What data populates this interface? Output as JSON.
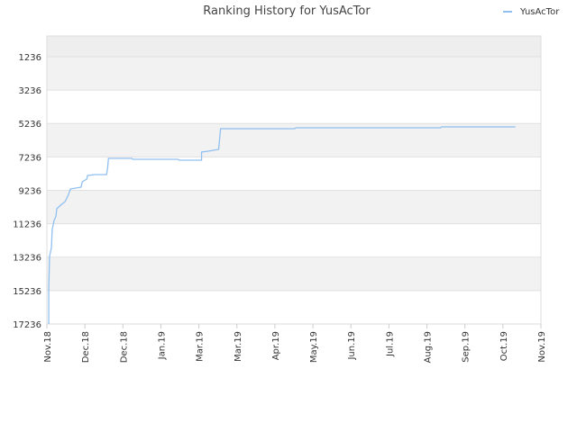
{
  "chart_data": {
    "type": "line",
    "title": "Ranking History for YusAcTor",
    "xlim": [
      0,
      13
    ],
    "xticks": [
      {
        "value": 0,
        "label": "Nov.18"
      },
      {
        "value": 1,
        "label": "Dec.18"
      },
      {
        "value": 2,
        "label": "Dec.18"
      },
      {
        "value": 3,
        "label": "Jan.19"
      },
      {
        "value": 4,
        "label": "Mar.19"
      },
      {
        "value": 5,
        "label": "Mar.19"
      },
      {
        "value": 6,
        "label": "Apr.19"
      },
      {
        "value": 7,
        "label": "May.19"
      },
      {
        "value": 8,
        "label": "Jun.19"
      },
      {
        "value": 9,
        "label": "Jul.19"
      },
      {
        "value": 10,
        "label": "Aug.19"
      },
      {
        "value": 11,
        "label": "Sep.19"
      },
      {
        "value": 12,
        "label": "Oct.19"
      },
      {
        "value": 13,
        "label": "Nov.19"
      }
    ],
    "ylim": [
      17236,
      0
    ],
    "yticks": [
      1236,
      3236,
      5236,
      7236,
      9236,
      11236,
      13236,
      15236,
      17236
    ],
    "legend": "top-right",
    "series": [
      {
        "name": "YusAcTor",
        "color": "#90c0f0",
        "x": [
          0.05,
          0.05,
          0.07,
          0.12,
          0.14,
          0.19,
          0.24,
          0.26,
          0.36,
          0.48,
          0.57,
          0.62,
          0.76,
          0.9,
          0.93,
          1.05,
          1.07,
          1.26,
          1.57,
          1.6,
          1.62,
          2.24,
          2.26,
          3.45,
          3.48,
          4.07,
          4.07,
          4.24,
          4.38,
          4.52,
          4.55,
          4.57,
          6.52,
          6.55,
          10.36,
          10.38,
          12.33
        ],
        "values": [
          17235,
          15081,
          13196,
          12657,
          11580,
          11041,
          10772,
          10341,
          10126,
          9910,
          9479,
          9156,
          9102,
          9048,
          8725,
          8564,
          8348,
          8294,
          8294,
          7864,
          7325,
          7325,
          7379,
          7379,
          7433,
          7433,
          6948,
          6894,
          6840,
          6786,
          6032,
          5548,
          5548,
          5494,
          5494,
          5440,
          5440
        ]
      }
    ]
  }
}
